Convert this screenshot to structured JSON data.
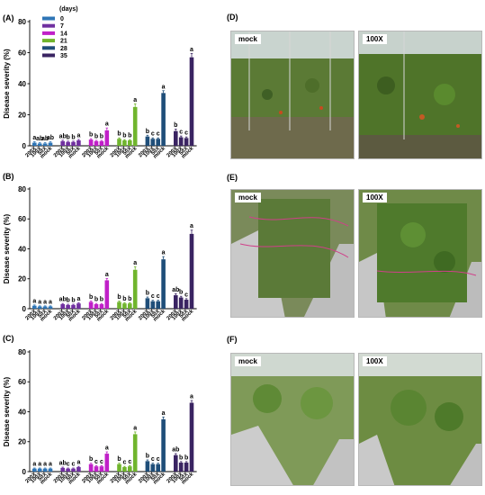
{
  "legend_title": "(days)",
  "legend": [
    {
      "label": "0",
      "color": "#2e75b6"
    },
    {
      "label": "7",
      "color": "#7030a0"
    },
    {
      "label": "14",
      "color": "#c020c8"
    },
    {
      "label": "21",
      "color": "#70b52d"
    },
    {
      "label": "28",
      "color": "#1f4e79"
    },
    {
      "label": "35",
      "color": "#3a2462"
    }
  ],
  "treatments": [
    "200X",
    "100X",
    "50X",
    "mock"
  ],
  "chart_data": [
    {
      "type": "bar",
      "panel": "(A)",
      "ylabel": "Disease severity (%)",
      "ylim": [
        0,
        80
      ],
      "yticks": [
        0,
        20,
        40,
        60,
        80
      ],
      "series": [
        {
          "day": "0",
          "values": [
            2.0,
            1.5,
            1.5,
            2.0
          ],
          "errors": [
            0.6,
            0.5,
            0.5,
            0.6
          ],
          "letters": [
            "a",
            "ab",
            "ab",
            "ab"
          ]
        },
        {
          "day": "7",
          "values": [
            3.0,
            2.5,
            2.5,
            3.5
          ],
          "errors": [
            0.6,
            0.5,
            0.5,
            0.6
          ],
          "letters": [
            "ab",
            "b",
            "b",
            "a"
          ]
        },
        {
          "day": "14",
          "values": [
            4.0,
            3.0,
            3.0,
            10.0
          ],
          "errors": [
            0.6,
            0.5,
            0.5,
            1.5
          ],
          "letters": [
            "b",
            "b",
            "b",
            "a"
          ]
        },
        {
          "day": "21",
          "values": [
            4.5,
            3.5,
            3.5,
            25.0
          ],
          "errors": [
            0.6,
            0.5,
            0.5,
            2.0
          ],
          "letters": [
            "b",
            "b",
            "b",
            "a"
          ]
        },
        {
          "day": "28",
          "values": [
            6.0,
            4.5,
            4.5,
            34.0
          ],
          "errors": [
            0.8,
            0.6,
            0.6,
            1.5
          ],
          "letters": [
            "b",
            "c",
            "c",
            "a"
          ]
        },
        {
          "day": "35",
          "values": [
            9.5,
            5.5,
            5.0,
            57.0
          ],
          "errors": [
            1.2,
            0.8,
            0.7,
            2.5
          ],
          "letters": [
            "b",
            "c",
            "c",
            "a"
          ]
        }
      ]
    },
    {
      "type": "bar",
      "panel": "(B)",
      "ylabel": "Disease severity (%)",
      "ylim": [
        0,
        80
      ],
      "yticks": [
        0,
        20,
        40,
        60,
        80
      ],
      "series": [
        {
          "day": "0",
          "values": [
            2.0,
            1.5,
            1.5,
            1.5
          ],
          "errors": [
            0.5,
            0.4,
            0.4,
            0.4
          ],
          "letters": [
            "a",
            "a",
            "a",
            "a"
          ]
        },
        {
          "day": "7",
          "values": [
            3.0,
            2.5,
            2.5,
            3.5
          ],
          "errors": [
            0.5,
            0.5,
            0.5,
            0.5
          ],
          "letters": [
            "ab",
            "b",
            "b",
            "a"
          ]
        },
        {
          "day": "14",
          "values": [
            4.5,
            3.0,
            3.0,
            19.0
          ],
          "errors": [
            0.6,
            0.5,
            0.5,
            1.2
          ],
          "letters": [
            "b",
            "b",
            "b",
            "a"
          ]
        },
        {
          "day": "21",
          "values": [
            4.5,
            3.5,
            3.5,
            26.0
          ],
          "errors": [
            0.6,
            0.5,
            0.5,
            2.0
          ],
          "letters": [
            "b",
            "b",
            "b",
            "a"
          ]
        },
        {
          "day": "28",
          "values": [
            7.0,
            5.0,
            5.0,
            33.0
          ],
          "errors": [
            0.8,
            0.6,
            0.6,
            1.8
          ],
          "letters": [
            "b",
            "c",
            "c",
            "a"
          ]
        },
        {
          "day": "35",
          "values": [
            9.0,
            7.5,
            6.0,
            50.0
          ],
          "errors": [
            1.0,
            0.8,
            0.7,
            2.5
          ],
          "letters": [
            "ab",
            "b",
            "c",
            "a"
          ]
        }
      ]
    },
    {
      "type": "bar",
      "panel": "(C)",
      "ylabel": "Disease severity (%)",
      "ylim": [
        0,
        80
      ],
      "yticks": [
        0,
        20,
        40,
        60,
        80
      ],
      "series": [
        {
          "day": "0",
          "values": [
            2.0,
            2.0,
            2.0,
            2.0
          ],
          "errors": [
            0.4,
            0.4,
            0.4,
            0.4
          ],
          "letters": [
            "a",
            "a",
            "a",
            "a"
          ]
        },
        {
          "day": "7",
          "values": [
            2.5,
            2.0,
            2.0,
            3.0
          ],
          "errors": [
            0.5,
            0.4,
            0.4,
            0.5
          ],
          "letters": [
            "ab",
            "c",
            "c",
            "a"
          ]
        },
        {
          "day": "14",
          "values": [
            5.0,
            3.5,
            3.5,
            12.0
          ],
          "errors": [
            0.6,
            0.5,
            0.5,
            1.2
          ],
          "letters": [
            "b",
            "c",
            "c",
            "a"
          ]
        },
        {
          "day": "21",
          "values": [
            5.0,
            3.0,
            3.5,
            25.0
          ],
          "errors": [
            0.6,
            0.5,
            0.5,
            1.5
          ],
          "letters": [
            "b",
            "c",
            "c",
            "a"
          ]
        },
        {
          "day": "28",
          "values": [
            7.0,
            5.0,
            5.0,
            35.0
          ],
          "errors": [
            0.8,
            0.6,
            0.6,
            1.5
          ],
          "letters": [
            "b",
            "c",
            "c",
            "a"
          ]
        },
        {
          "day": "35",
          "values": [
            11.0,
            6.0,
            6.0,
            46.0
          ],
          "errors": [
            1.0,
            0.7,
            0.7,
            1.5
          ],
          "letters": [
            "ab",
            "b",
            "b",
            "a"
          ]
        }
      ]
    }
  ],
  "photo_panels": [
    {
      "letter": "(D)",
      "left_label": "mock",
      "right_label": "100X"
    },
    {
      "letter": "(E)",
      "left_label": "mock",
      "right_label": "100X"
    },
    {
      "letter": "(F)",
      "left_label": "mock",
      "right_label": "100X"
    }
  ]
}
